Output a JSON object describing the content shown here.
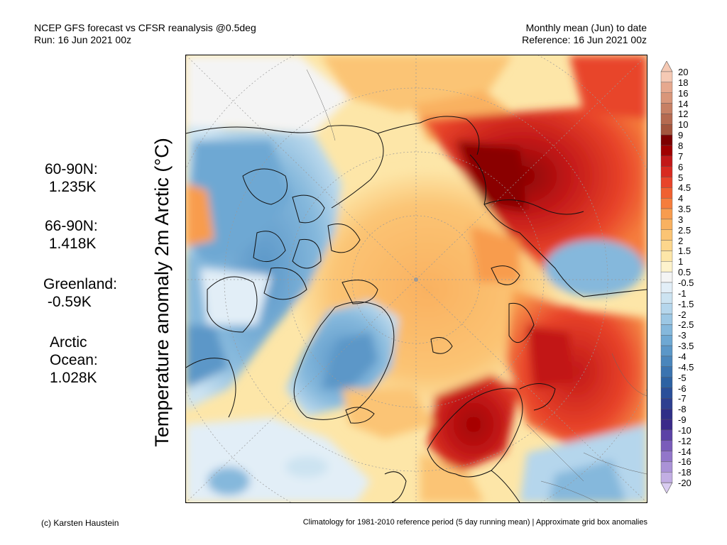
{
  "header": {
    "left_line1": "NCEP GFS forecast vs CFSR reanalysis @0.5deg",
    "left_line2": "Run: 16 Jun 2021 00z",
    "right_line1": "Monthly mean (Jun) to date",
    "right_line2": "Reference: 16 Jun 2021 00z"
  },
  "axis_label": "Temperature anomaly 2m Arctic (°C)",
  "stats": [
    {
      "region": "60-90N:",
      "value": "1.235K"
    },
    {
      "region": "66-90N:",
      "value": "1.418K"
    },
    {
      "region": "Greenland:",
      "value": "-0.59K"
    },
    {
      "region": "Arctic\nOcean:",
      "value": "1.028K"
    }
  ],
  "colorbar": {
    "labels": [
      "20",
      "18",
      "16",
      "14",
      "12",
      "10",
      "9",
      "8",
      "7",
      "6",
      "5",
      "4.5",
      "4",
      "3.5",
      "3",
      "2.5",
      "2",
      "1.5",
      "1",
      "0.5",
      "-0.5",
      "-1",
      "-1.5",
      "-2",
      "-2.5",
      "-3",
      "-3.5",
      "-4",
      "-4.5",
      "-5",
      "-6",
      "-7",
      "-8",
      "-9",
      "-10",
      "-12",
      "-14",
      "-16",
      "-18",
      "-20"
    ],
    "colors": [
      "#f5c9b4",
      "#e6a88e",
      "#d9967a",
      "#c78064",
      "#b56a50",
      "#a3553d",
      "#7d0000",
      "#a00000",
      "#c21818",
      "#d82a20",
      "#e8442a",
      "#f06030",
      "#f57d3c",
      "#f89c4e",
      "#f9b160",
      "#fbc474",
      "#fcd68c",
      "#fde6a8",
      "#fef3cc",
      "#f4f4f4",
      "#e2eef7",
      "#cce3f1",
      "#b5d6ec",
      "#9cc7e4",
      "#85b8dc",
      "#6ea8d3",
      "#5b97c8",
      "#4a86bc",
      "#3b74b0",
      "#2d62a3",
      "#2a4f9a",
      "#2d3f90",
      "#2e2f88",
      "#3a2a8a",
      "#5b42a6",
      "#7a5cba",
      "#9276c9",
      "#aa92d6",
      "#c2aee3",
      "#d9ccf0"
    ]
  },
  "footer": {
    "left": "(c) Karsten Haustein",
    "right": "Climatology for 1981-2010 reference period (5 day running mean) | Approximate grid box anomalies"
  }
}
